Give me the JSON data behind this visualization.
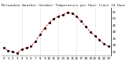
{
  "title": "Milwaukee Weather Outdoor Temperature per Hour (Last 24 Hours)",
  "hours": [
    0,
    1,
    2,
    3,
    4,
    5,
    6,
    7,
    8,
    9,
    10,
    11,
    12,
    13,
    14,
    15,
    16,
    17,
    18,
    19,
    20,
    21,
    22,
    23
  ],
  "temps": [
    28,
    26,
    25,
    24,
    27,
    28,
    29,
    33,
    38,
    43,
    47,
    50,
    52,
    53,
    55,
    54,
    52,
    48,
    44,
    40,
    37,
    34,
    31,
    29
  ],
  "line_color": "#cc0000",
  "marker_color": "#000000",
  "bg_color": "#ffffff",
  "grid_color": "#bbbbbb",
  "ylim": [
    22,
    58
  ],
  "yticks": [
    25,
    30,
    35,
    40,
    45,
    50,
    55
  ],
  "title_color": "#222222",
  "title_fontsize": 3.2,
  "tick_fontsize": 2.8,
  "vgrid_hours": [
    4,
    8,
    12,
    16,
    20
  ]
}
